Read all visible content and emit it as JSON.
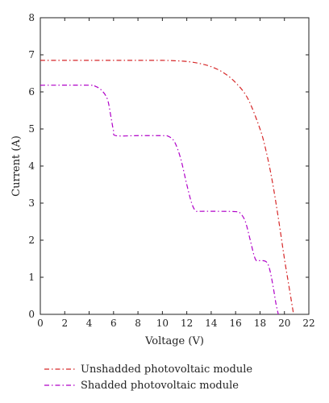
{
  "chart_data": {
    "type": "line",
    "xlabel": "Voltage (V)",
    "ylabel": "Current (A)",
    "xlim": [
      0,
      22
    ],
    "ylim": [
      0,
      8
    ],
    "xticks": [
      0,
      2,
      4,
      6,
      8,
      10,
      12,
      14,
      16,
      18,
      20,
      22
    ],
    "yticks": [
      0,
      1,
      2,
      3,
      4,
      5,
      6,
      7,
      8
    ],
    "grid": false,
    "legend_position": "bottom-left",
    "series": [
      {
        "name": "Unshadded photovoltaic module",
        "color": "#d62728",
        "x": [
          0,
          4,
          8,
          10,
          11,
          12,
          13,
          14,
          15,
          16,
          17,
          18,
          18.5,
          19,
          19.5,
          20,
          20.3,
          20.6,
          20.75
        ],
        "y": [
          6.85,
          6.85,
          6.85,
          6.85,
          6.84,
          6.82,
          6.77,
          6.68,
          6.52,
          6.25,
          5.82,
          5.0,
          4.4,
          3.6,
          2.6,
          1.5,
          0.9,
          0.3,
          0.0
        ]
      },
      {
        "name": "Shadded photovoltaic module",
        "color": "#b000c8",
        "x": [
          0,
          4.0,
          4.5,
          5.0,
          5.5,
          5.8,
          6.0,
          6.2,
          8,
          10,
          10.5,
          11.0,
          11.5,
          12.0,
          12.4,
          12.7,
          13.0,
          14,
          16,
          16.4,
          16.8,
          17.2,
          17.5,
          17.7,
          17.9,
          18.5,
          18.8,
          19.1,
          19.3,
          19.5
        ],
        "y": [
          6.18,
          6.18,
          6.15,
          6.05,
          5.8,
          5.3,
          4.95,
          4.82,
          4.82,
          4.82,
          4.8,
          4.65,
          4.2,
          3.5,
          3.0,
          2.8,
          2.78,
          2.78,
          2.77,
          2.72,
          2.5,
          2.0,
          1.6,
          1.45,
          1.45,
          1.42,
          1.2,
          0.7,
          0.3,
          0.0
        ]
      }
    ]
  }
}
